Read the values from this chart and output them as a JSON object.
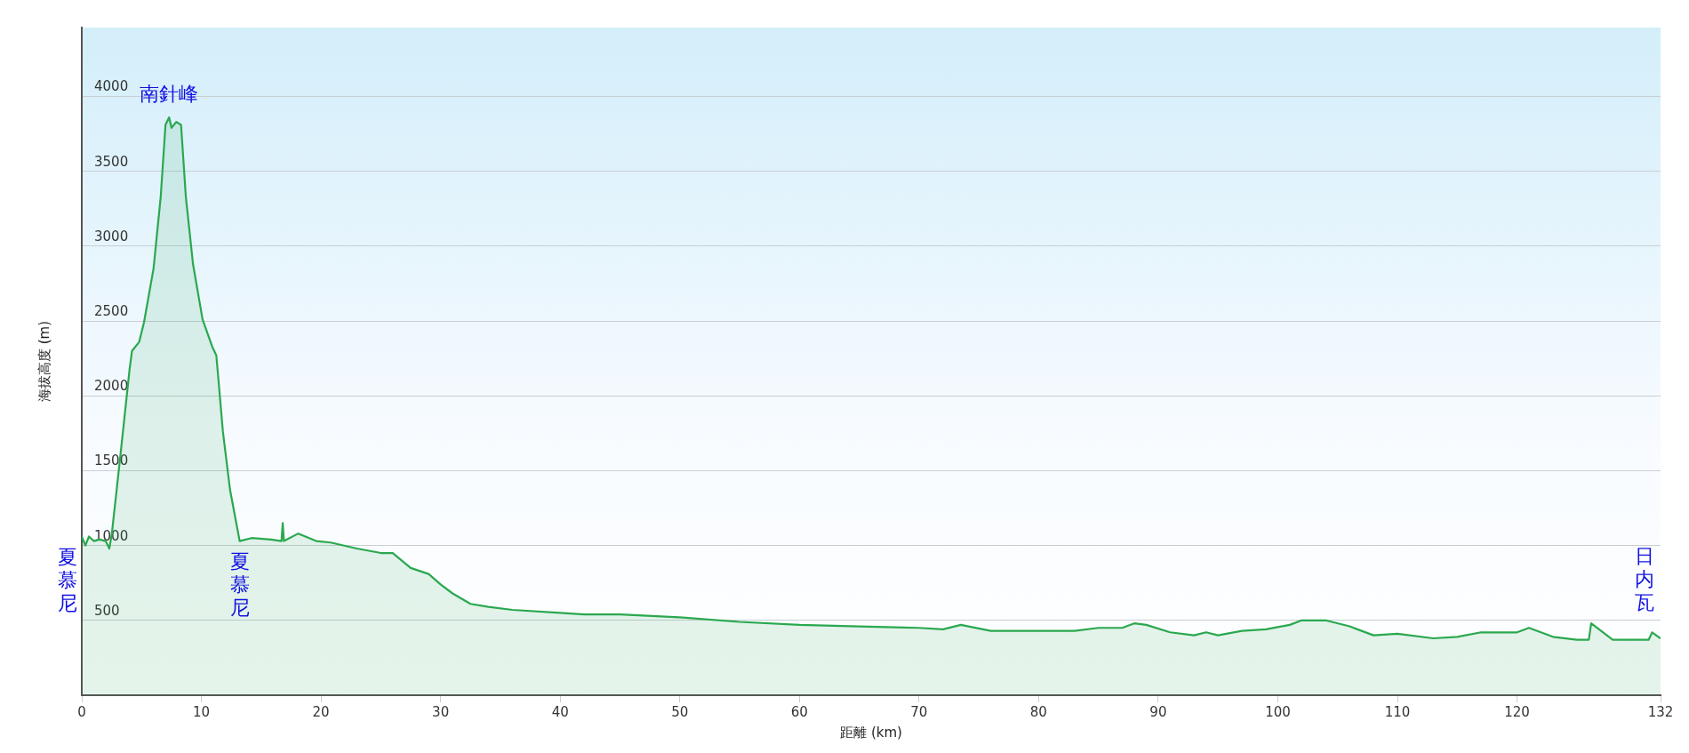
{
  "chart_data": {
    "type": "area",
    "xlabel": "距離 (km)",
    "ylabel": "海拔高度 (m)",
    "xlim": [
      0,
      132
    ],
    "xticks": [
      0,
      10,
      20,
      30,
      40,
      50,
      60,
      70,
      80,
      90,
      100,
      110,
      120,
      132
    ],
    "ylim": [
      0,
      4460
    ],
    "yticks": [
      500,
      1000,
      1500,
      2000,
      2500,
      3000,
      3500,
      4000
    ],
    "grid": "y",
    "series": [
      {
        "color": "#2aa84f",
        "x": [
          0,
          0.3,
          0.6,
          1,
          1.5,
          2,
          2.3,
          2.5,
          3.2,
          4.0,
          4.2,
          4.8,
          5.2,
          6.0,
          6.6,
          7.0,
          7.3,
          7.5,
          7.9,
          8.3,
          8.7,
          9.3,
          10.1,
          10.9,
          11.25,
          11.8,
          12.4,
          13.2,
          14.2,
          15.8,
          16.7,
          16.8,
          16.9,
          18.1,
          19.6,
          20.8,
          23,
          25,
          26,
          27.5,
          29,
          30,
          31,
          32.5,
          34,
          36,
          40,
          42,
          45,
          50,
          55,
          60,
          65,
          70,
          72,
          73.5,
          76,
          80,
          83,
          85,
          87,
          88,
          89,
          91,
          93,
          94,
          95,
          97,
          99,
          101,
          102,
          104,
          106,
          108,
          110,
          113,
          115,
          117,
          120,
          121,
          123,
          125,
          126,
          126.2,
          128,
          130,
          131,
          131.3,
          132
        ],
        "values": [
          1060,
          1000,
          1060,
          1030,
          1040,
          1030,
          980,
          1070,
          1580,
          2180,
          2300,
          2360,
          2490,
          2850,
          3330,
          3810,
          3860,
          3790,
          3830,
          3810,
          3330,
          2880,
          2510,
          2330,
          2270,
          1760,
          1370,
          1030,
          1050,
          1040,
          1030,
          1150,
          1030,
          1080,
          1030,
          1020,
          980,
          950,
          950,
          850,
          810,
          740,
          680,
          610,
          590,
          570,
          550,
          540,
          540,
          520,
          490,
          470,
          460,
          450,
          440,
          470,
          430,
          430,
          430,
          450,
          450,
          480,
          470,
          420,
          400,
          420,
          400,
          430,
          440,
          470,
          500,
          500,
          460,
          400,
          410,
          380,
          390,
          420,
          420,
          450,
          390,
          370,
          370,
          480,
          370,
          370,
          370,
          420,
          380
        ]
      }
    ],
    "annotations": [
      {
        "text": "南針峰",
        "x": 7.3,
        "y": 3860
      },
      {
        "text": "夏慕尼",
        "x": 0,
        "y": 1060
      },
      {
        "text": "夏慕尼",
        "x": 13.2,
        "y": 1030
      },
      {
        "text": "日内瓦",
        "x": 132,
        "y": 380
      }
    ]
  }
}
